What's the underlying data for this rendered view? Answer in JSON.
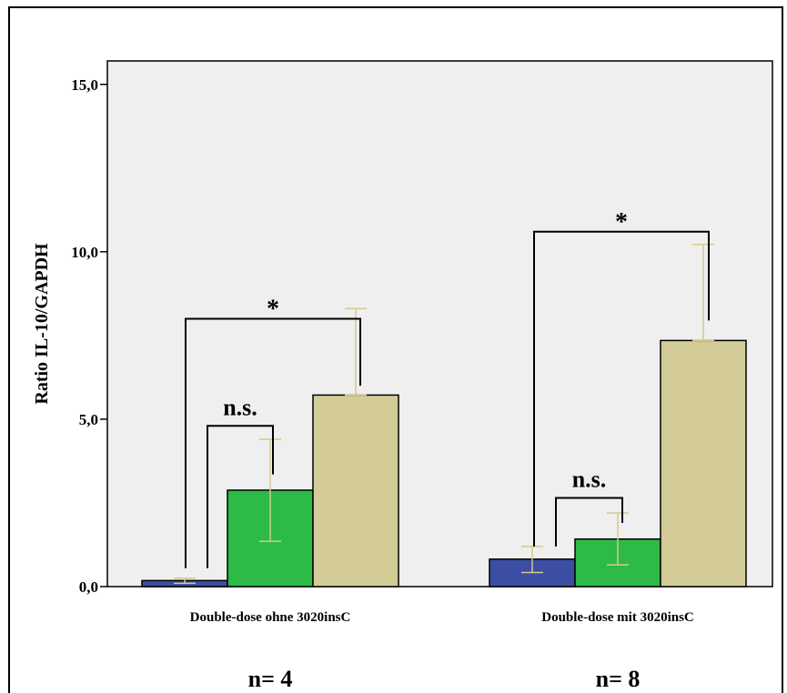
{
  "colors": {
    "plot_background": "#efefef",
    "frame": "#000000",
    "error_bar": "#d4c98f",
    "series": [
      "#3b4ea3",
      "#2dba47",
      "#d4cc97"
    ]
  },
  "chart_data": {
    "type": "bar",
    "ylabel": "Ratio IL-10/GAPDH",
    "xlabel": "",
    "ylim": [
      0,
      15.7
    ],
    "yticks": [
      {
        "value": 0,
        "label": "0,0"
      },
      {
        "value": 5,
        "label": "5,0"
      },
      {
        "value": 10,
        "label": "10,0"
      },
      {
        "value": 15,
        "label": "15,0"
      }
    ],
    "categories": [
      "Double-dose ohne 3020insC",
      "Double-dose mit 3020insC"
    ],
    "series": [
      {
        "values": [
          0.18,
          0.82
        ],
        "error_low": [
          0.1,
          0.42
        ],
        "error_high": [
          0.25,
          1.2
        ]
      },
      {
        "values": [
          2.88,
          1.42
        ],
        "error_low": [
          1.35,
          0.65
        ],
        "error_high": [
          4.4,
          2.2
        ]
      },
      {
        "values": [
          5.72,
          7.35
        ],
        "error_low": [
          5.72,
          7.35
        ],
        "error_high": [
          8.3,
          10.22
        ]
      }
    ],
    "grid": false,
    "legend": "none",
    "annotations": {
      "sample_sizes": [
        "n= 4",
        "n= 8"
      ],
      "significance": [
        {
          "category": 0,
          "from_series": 1,
          "to_series": 2,
          "label": "*",
          "top": 8.0,
          "left_end": 0.55,
          "right_end": 6.0
        },
        {
          "category": 0,
          "from_series": 1,
          "to_series": 1,
          "label": "n.s.",
          "top": 4.8,
          "left_end": 0.55,
          "right_end": 3.35,
          "from_series_index": 0,
          "to_series_index": 1
        },
        {
          "category": 1,
          "from_series": 0,
          "to_series": 2,
          "label": "*",
          "top": 10.6,
          "left_end": 1.2,
          "right_end": 7.95
        },
        {
          "category": 1,
          "from_series": 0,
          "to_series": 1,
          "label": "n.s.",
          "top": 2.65,
          "left_end": 1.2,
          "right_end": 1.9
        }
      ]
    }
  }
}
